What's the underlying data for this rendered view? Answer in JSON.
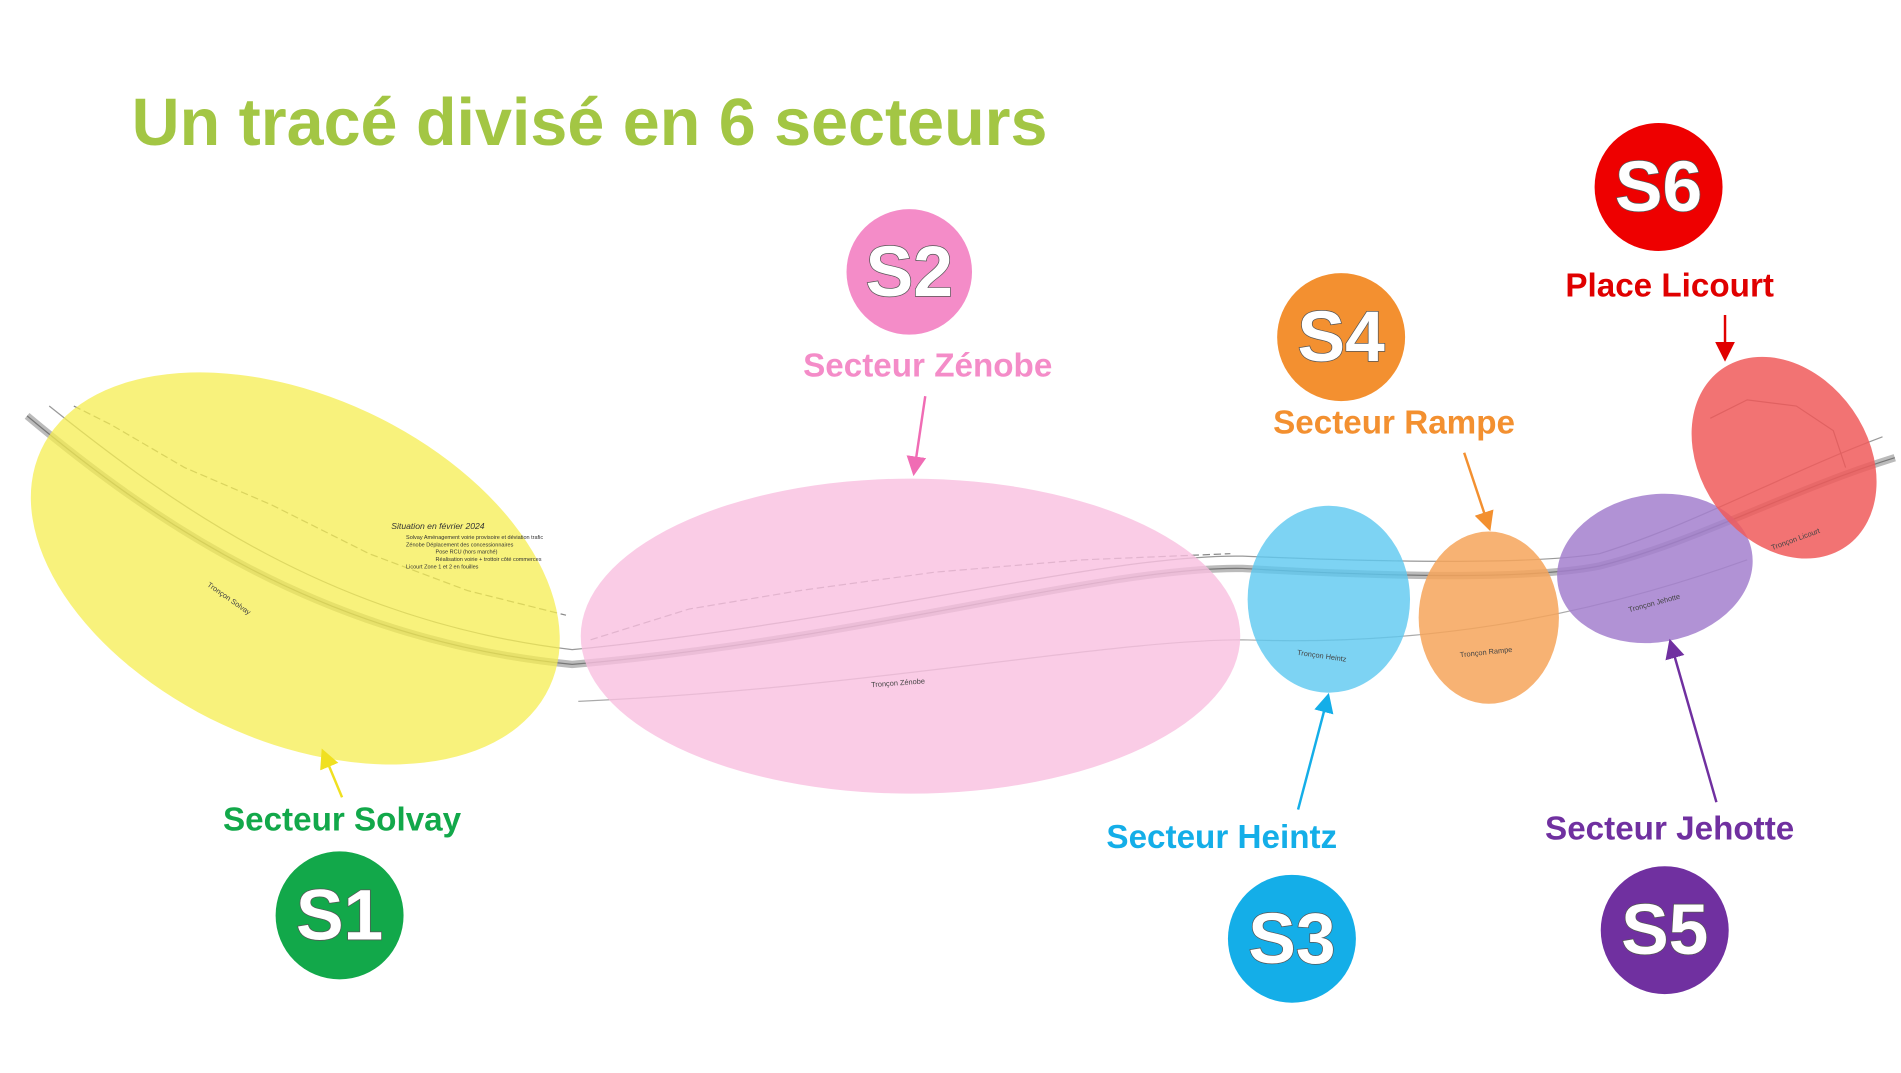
{
  "title": "Un tracé divisé en 6 secteurs",
  "sectors": [
    {
      "code": "S1",
      "name": "Secteur Solvay"
    },
    {
      "code": "S2",
      "name": "Secteur Zénobe"
    },
    {
      "code": "S3",
      "name": "Secteur Heintz"
    },
    {
      "code": "S4",
      "name": "Secteur Rampe"
    },
    {
      "code": "S5",
      "name": "Secteur Jehotte"
    },
    {
      "code": "S6",
      "name": "Place Licourt"
    }
  ],
  "map": {
    "situation_title": "Situation en février 2024",
    "legend_rows": [
      "Solvay   Aménagement voirie provisoire et déviation trafic",
      "Zénobe   Déplacement des concessionnaires",
      "Pose RCU (hors marché)",
      "Réalisation voirie + trottoir côté commerces",
      "Licourt   Zone 1 et 2 en fouilles"
    ],
    "segments": [
      "Tronçon Solvay",
      "Tronçon Zénobe",
      "Tronçon Heintz",
      "Tronçon Rampe",
      "Tronçon Jehotte",
      "Tronçon Licourt"
    ]
  }
}
